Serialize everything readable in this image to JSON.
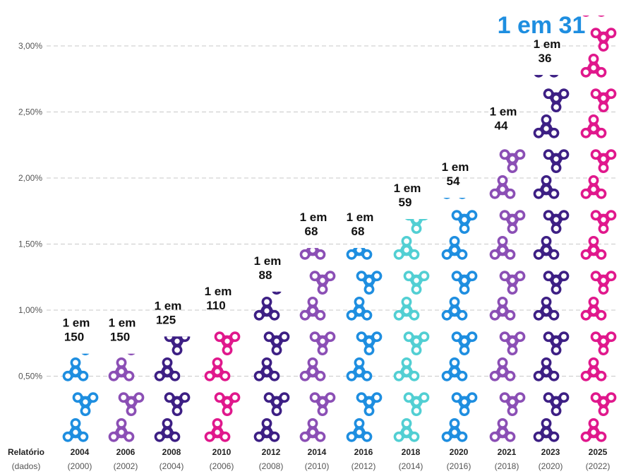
{
  "chart_data": {
    "type": "bar",
    "ylim": [
      0,
      3.2
    ],
    "y_ticks": [
      "0,50%",
      "1,00%",
      "1,50%",
      "2,00%",
      "2,50%",
      "3,00%"
    ],
    "y_tick_values": [
      0.5,
      1.0,
      1.5,
      2.0,
      2.5,
      3.0
    ],
    "grid": true,
    "x_header": {
      "line1": "Relatório",
      "line2": "(dados)"
    },
    "categories": [
      {
        "report": "2004",
        "data": "(2000)",
        "prefix": "1 em",
        "n": "150",
        "value": 0.67,
        "color": "#1e8ee0",
        "pattern": "blue"
      },
      {
        "report": "2006",
        "data": "(2002)",
        "prefix": "1 em",
        "n": "150",
        "value": 0.67,
        "color": "#8b4fb5",
        "pattern": "purple"
      },
      {
        "report": "2008",
        "data": "(2004)",
        "prefix": "1 em",
        "n": "125",
        "value": 0.8,
        "color": "#3d1f84",
        "pattern": "dark-purple"
      },
      {
        "report": "2010",
        "data": "(2006)",
        "prefix": "1 em",
        "n": "110",
        "value": 0.91,
        "color": "#e0188c",
        "pattern": "magenta"
      },
      {
        "report": "2012",
        "data": "(2008)",
        "prefix": "1 em",
        "n": "88",
        "value": 1.14,
        "color": "#3d1f84",
        "pattern": "dark-purple"
      },
      {
        "report": "2014",
        "data": "(2010)",
        "prefix": "1 em",
        "n": "68",
        "value": 1.47,
        "color": "#8b4fb5",
        "pattern": "purple"
      },
      {
        "report": "2016",
        "data": "(2012)",
        "prefix": "1 em",
        "n": "68",
        "value": 1.47,
        "color": "#1e8ee0",
        "pattern": "blue"
      },
      {
        "report": "2018",
        "data": "(2014)",
        "prefix": "1 em",
        "n": "59",
        "value": 1.69,
        "color": "#52cfd3",
        "pattern": "cyan"
      },
      {
        "report": "2020",
        "data": "(2016)",
        "prefix": "1 em",
        "n": "54",
        "value": 1.85,
        "color": "#1e8ee0",
        "pattern": "blue"
      },
      {
        "report": "2021",
        "data": "(2018)",
        "prefix": "1 em",
        "n": "44",
        "value": 2.27,
        "color": "#8b4fb5",
        "pattern": "purple"
      },
      {
        "report": "2023",
        "data": "(2020)",
        "prefix": "1 em",
        "n": "36",
        "value": 2.78,
        "color": "#3d1f84",
        "pattern": "dark-purple"
      },
      {
        "report": "2025",
        "data": "(2022)",
        "prefix": "1 em",
        "n": "31",
        "value": 3.23,
        "color": "#e0188c",
        "pattern": "magenta",
        "highlight_label": "1 em 31",
        "highlight_color": "#1e8ee0",
        "year_color": "#d4196f",
        "data_color": "#e07aa8"
      }
    ]
  }
}
